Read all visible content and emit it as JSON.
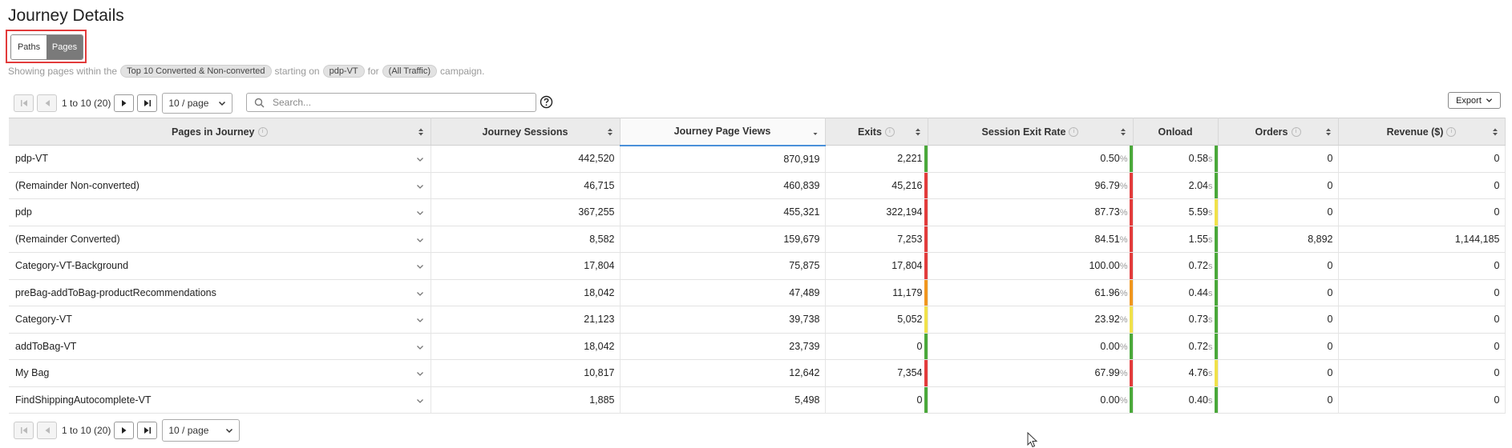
{
  "title": "Journey Details",
  "toggle": {
    "paths": "Paths",
    "pages": "Pages",
    "active": "Pages"
  },
  "info": {
    "prefix": "Showing pages within the",
    "segment": "Top 10 Converted & Non-converted",
    "mid1": "starting on",
    "start_page": "pdp-VT",
    "mid2": "for",
    "campaign": "(All Traffic)",
    "suffix": "campaign."
  },
  "pager": {
    "range": "1 to 10 (20)",
    "page_size": "10 / page"
  },
  "search": {
    "placeholder": "Search...",
    "value": ""
  },
  "export_label": "Export",
  "columns": [
    "Pages in Journey",
    "Journey Sessions",
    "Journey Page Views",
    "Exits",
    "Session Exit Rate",
    "Onload",
    "Orders",
    "Revenue ($)"
  ],
  "colors": {
    "green": "#4aa83a",
    "red": "#e23b3b",
    "orange": "#f0961e",
    "yellow": "#f0e14a",
    "sort_accent": "#4a90d9",
    "highlight_box": "#e23b3b"
  },
  "rows": [
    {
      "page": "pdp-VT",
      "sessions": "442,520",
      "views": "870,919",
      "exits": "2,221",
      "exits_status": "green",
      "exit_rate": "0.50",
      "exit_rate_status": "green",
      "onload": "0.58",
      "onload_status": "green",
      "orders": "0",
      "revenue": "0"
    },
    {
      "page": "(Remainder Non-converted)",
      "sessions": "46,715",
      "views": "460,839",
      "exits": "45,216",
      "exits_status": "red",
      "exit_rate": "96.79",
      "exit_rate_status": "red",
      "onload": "2.04",
      "onload_status": "green",
      "orders": "0",
      "revenue": "0"
    },
    {
      "page": "pdp",
      "sessions": "367,255",
      "views": "455,321",
      "exits": "322,194",
      "exits_status": "red",
      "exit_rate": "87.73",
      "exit_rate_status": "red",
      "onload": "5.59",
      "onload_status": "yellow",
      "orders": "0",
      "revenue": "0"
    },
    {
      "page": "(Remainder Converted)",
      "sessions": "8,582",
      "views": "159,679",
      "exits": "7,253",
      "exits_status": "red",
      "exit_rate": "84.51",
      "exit_rate_status": "red",
      "onload": "1.55",
      "onload_status": "green",
      "orders": "8,892",
      "revenue": "1,144,185"
    },
    {
      "page": "Category-VT-Background",
      "sessions": "17,804",
      "views": "75,875",
      "exits": "17,804",
      "exits_status": "red",
      "exit_rate": "100.00",
      "exit_rate_status": "red",
      "onload": "0.72",
      "onload_status": "green",
      "orders": "0",
      "revenue": "0"
    },
    {
      "page": "preBag-addToBag-productRecommendations",
      "sessions": "18,042",
      "views": "47,489",
      "exits": "11,179",
      "exits_status": "orange",
      "exit_rate": "61.96",
      "exit_rate_status": "orange",
      "onload": "0.44",
      "onload_status": "green",
      "orders": "0",
      "revenue": "0"
    },
    {
      "page": "Category-VT",
      "sessions": "21,123",
      "views": "39,738",
      "exits": "5,052",
      "exits_status": "yellow",
      "exit_rate": "23.92",
      "exit_rate_status": "yellow",
      "onload": "0.73",
      "onload_status": "green",
      "orders": "0",
      "revenue": "0"
    },
    {
      "page": "addToBag-VT",
      "sessions": "18,042",
      "views": "23,739",
      "exits": "0",
      "exits_status": "green",
      "exit_rate": "0.00",
      "exit_rate_status": "green",
      "onload": "0.72",
      "onload_status": "green",
      "orders": "0",
      "revenue": "0"
    },
    {
      "page": "My Bag",
      "sessions": "10,817",
      "views": "12,642",
      "exits": "7,354",
      "exits_status": "red",
      "exit_rate": "67.99",
      "exit_rate_status": "red",
      "onload": "4.76",
      "onload_status": "yellow",
      "orders": "0",
      "revenue": "0"
    },
    {
      "page": "FindShippingAutocomplete-VT",
      "sessions": "1,885",
      "views": "5,498",
      "exits": "0",
      "exits_status": "green",
      "exit_rate": "0.00",
      "exit_rate_status": "green",
      "onload": "0.40",
      "onload_status": "green",
      "orders": "0",
      "revenue": "0"
    }
  ],
  "units": {
    "percent": "%",
    "seconds": "s"
  }
}
